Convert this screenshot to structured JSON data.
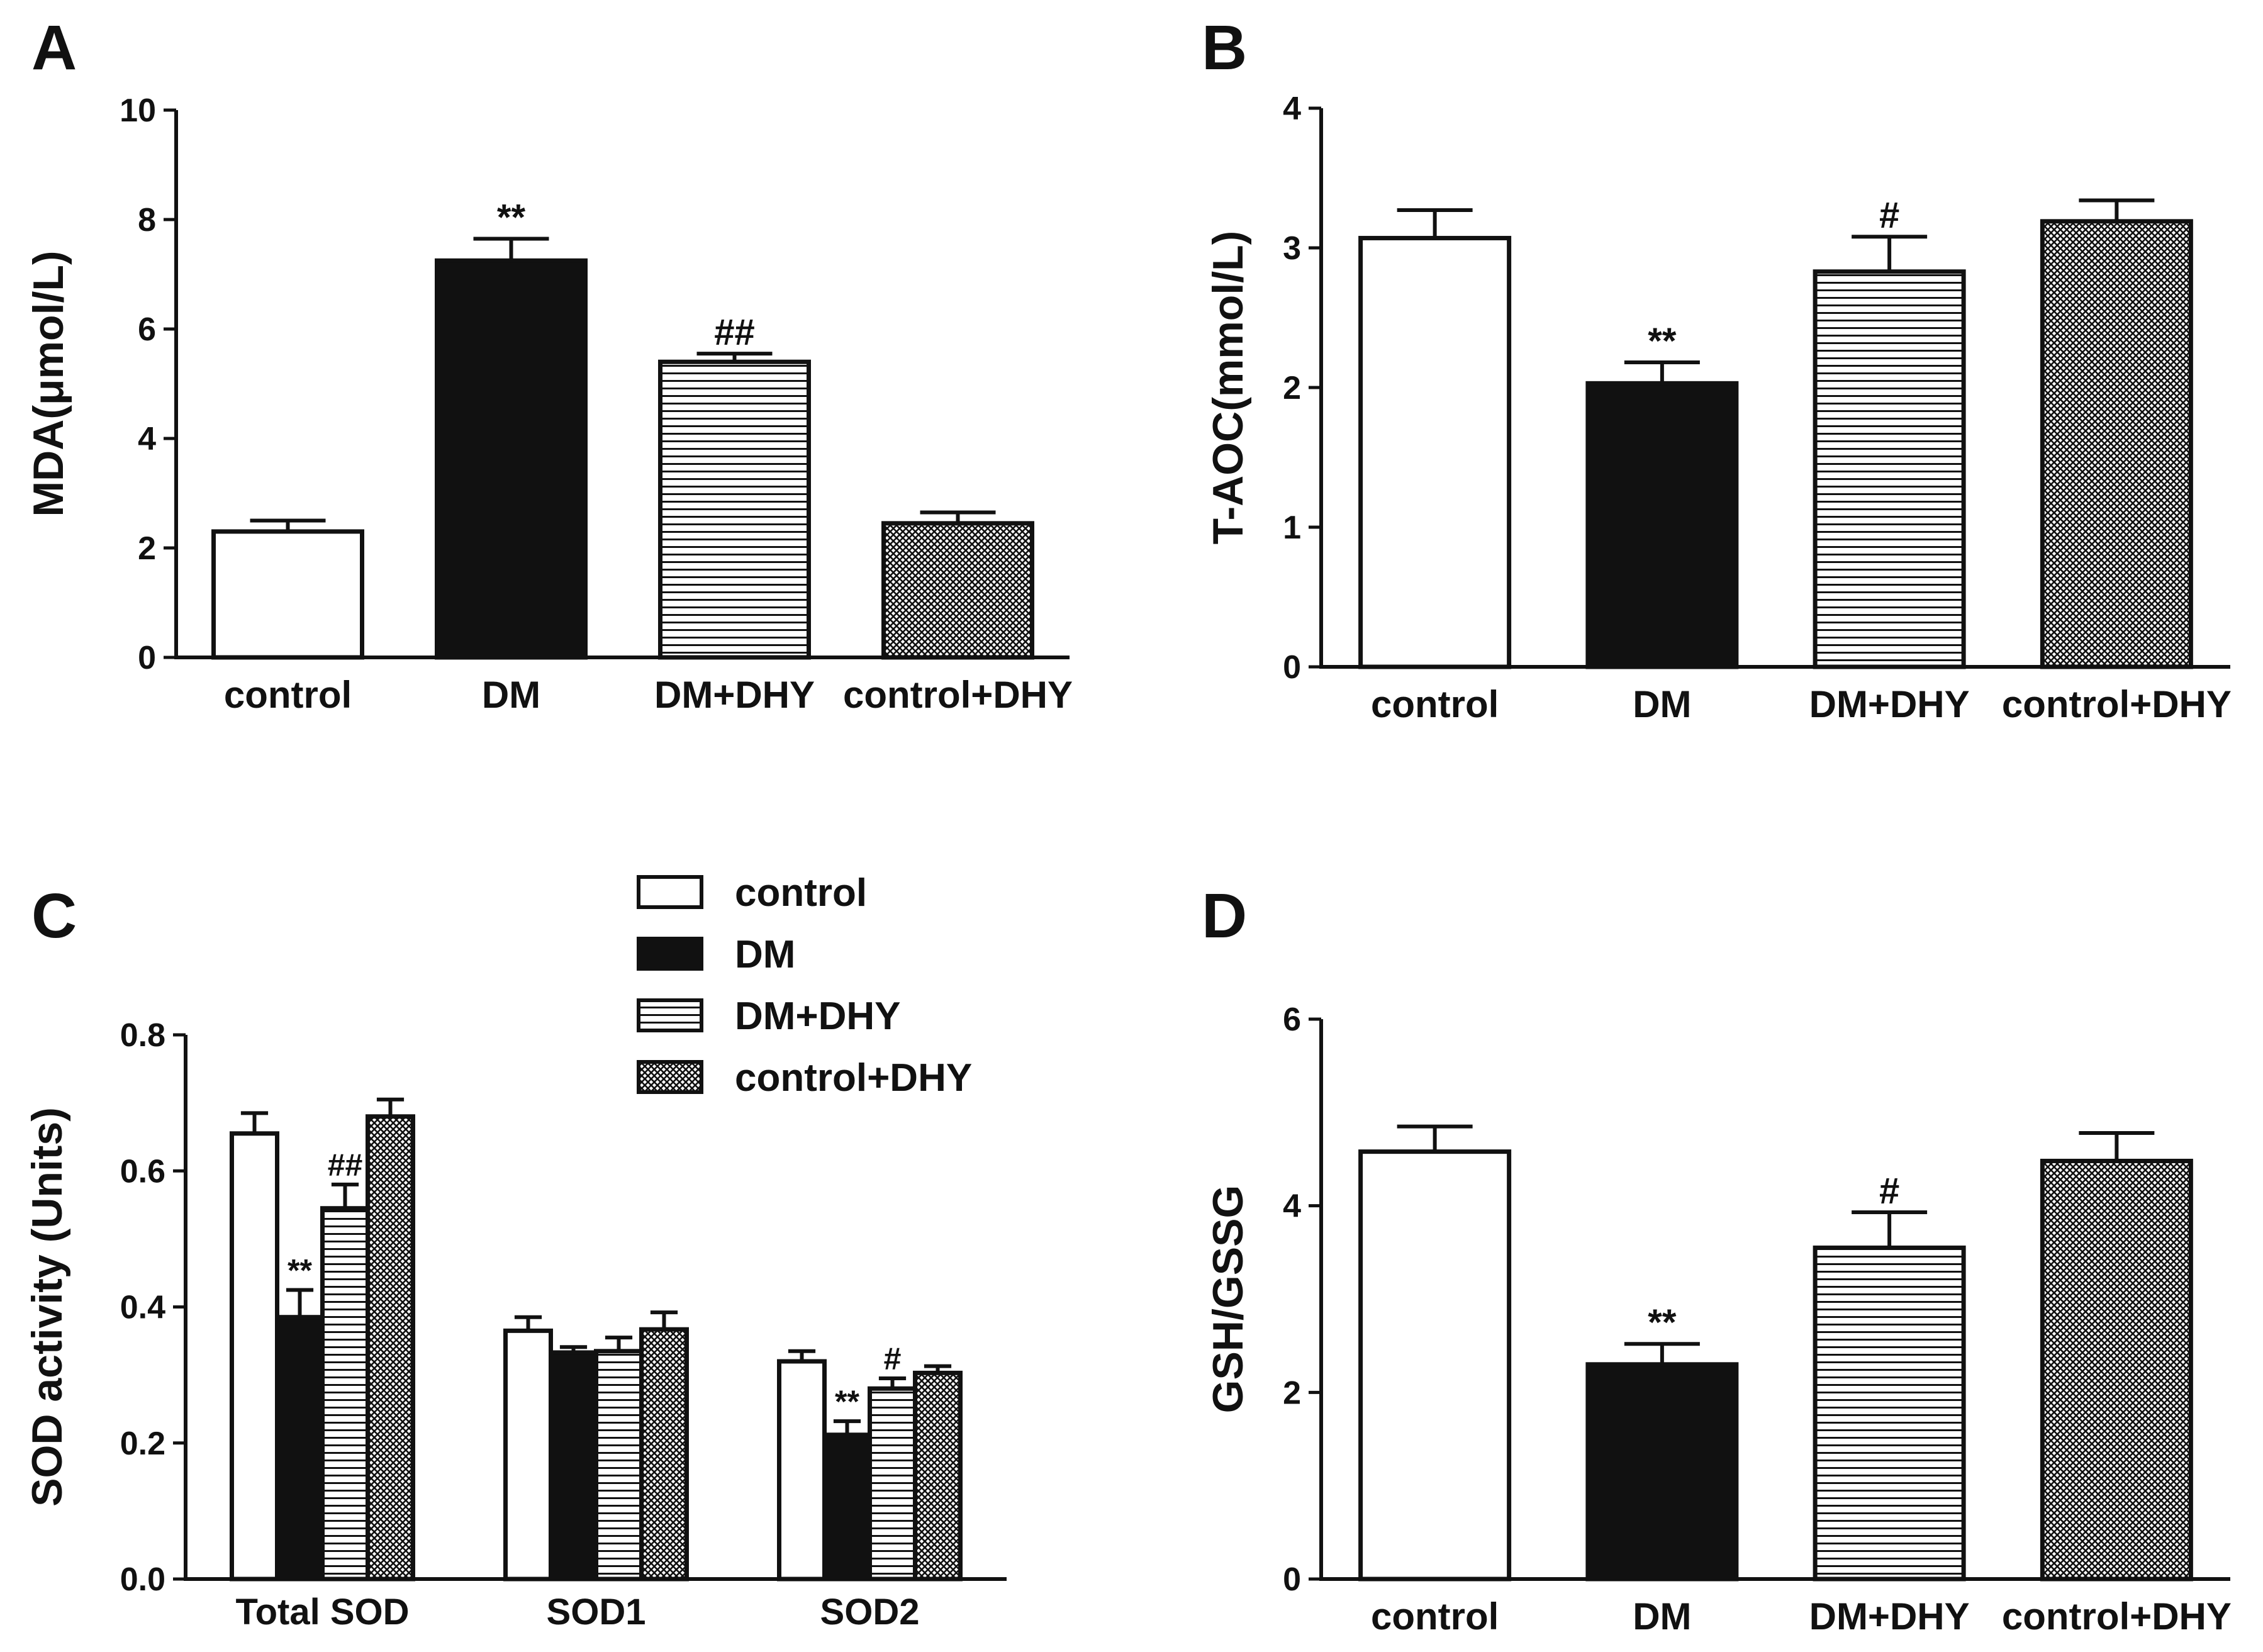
{
  "colors": {
    "ink": "#111111",
    "background": "#ffffff"
  },
  "legend": {
    "items": [
      {
        "label": "control",
        "pattern": "open"
      },
      {
        "label": "DM",
        "pattern": "solid"
      },
      {
        "label": "DM+DHY",
        "pattern": "hstripes"
      },
      {
        "label": "control+DHY",
        "pattern": "crosshatch"
      }
    ]
  },
  "chart_data": [
    {
      "panel": "A",
      "type": "bar",
      "title": "",
      "xlabel": "",
      "ylabel": "MDA(μmol/L)",
      "ylim": [
        0,
        10
      ],
      "yticks": [
        "0",
        "2",
        "4",
        "6",
        "8",
        "10"
      ],
      "categories": [
        "control",
        "DM",
        "DM+DHY",
        "control+DHY"
      ],
      "patterns": [
        "open",
        "solid",
        "hstripes",
        "crosshatch"
      ],
      "values": [
        2.3,
        7.25,
        5.4,
        2.45
      ],
      "errors": [
        0.2,
        0.4,
        0.15,
        0.2
      ],
      "annotations": [
        "",
        "**",
        "##",
        ""
      ]
    },
    {
      "panel": "B",
      "type": "bar",
      "title": "",
      "xlabel": "",
      "ylabel": "T-AOC(mmol/L)",
      "ylim": [
        0,
        4
      ],
      "yticks": [
        "0",
        "1",
        "2",
        "3",
        "4"
      ],
      "categories": [
        "control",
        "DM",
        "DM+DHY",
        "control+DHY"
      ],
      "patterns": [
        "open",
        "solid",
        "hstripes",
        "crosshatch"
      ],
      "values": [
        3.07,
        2.03,
        2.83,
        3.19
      ],
      "errors": [
        0.2,
        0.15,
        0.25,
        0.15
      ],
      "annotations": [
        "",
        "**",
        "#",
        ""
      ]
    },
    {
      "panel": "C",
      "type": "bar",
      "title": "",
      "xlabel": "",
      "ylabel": "SOD activity (Units)",
      "ylim": [
        0,
        0.8
      ],
      "yticks": [
        "0.0",
        "0.2",
        "0.4",
        "0.6",
        "0.8"
      ],
      "categories": [
        "Total SOD",
        "SOD1",
        "SOD2"
      ],
      "series": [
        {
          "name": "control",
          "pattern": "open",
          "values": [
            0.655,
            0.365,
            0.32
          ],
          "errors": [
            0.03,
            0.02,
            0.015
          ],
          "annotations": [
            "",
            "",
            ""
          ]
        },
        {
          "name": "DM",
          "pattern": "solid",
          "values": [
            0.385,
            0.333,
            0.212
          ],
          "errors": [
            0.04,
            0.008,
            0.02
          ],
          "annotations": [
            "**",
            "",
            "**"
          ]
        },
        {
          "name": "DM+DHY",
          "pattern": "hstripes",
          "values": [
            0.545,
            0.335,
            0.28
          ],
          "errors": [
            0.035,
            0.02,
            0.015
          ],
          "annotations": [
            "##",
            "",
            "#"
          ]
        },
        {
          "name": "control+DHY",
          "pattern": "crosshatch",
          "values": [
            0.68,
            0.367,
            0.303
          ],
          "errors": [
            0.025,
            0.025,
            0.01
          ],
          "annotations": [
            "",
            "",
            ""
          ]
        }
      ]
    },
    {
      "panel": "D",
      "type": "bar",
      "title": "",
      "xlabel": "",
      "ylabel": "GSH/GSSG",
      "ylim": [
        0,
        6
      ],
      "yticks": [
        "0",
        "2",
        "4",
        "6"
      ],
      "categories": [
        "control",
        "DM",
        "DM+DHY",
        "control+DHY"
      ],
      "patterns": [
        "open",
        "solid",
        "hstripes",
        "crosshatch"
      ],
      "values": [
        4.58,
        2.3,
        3.55,
        4.48
      ],
      "errors": [
        0.27,
        0.22,
        0.38,
        0.3
      ],
      "annotations": [
        "",
        "**",
        "#",
        ""
      ]
    }
  ]
}
